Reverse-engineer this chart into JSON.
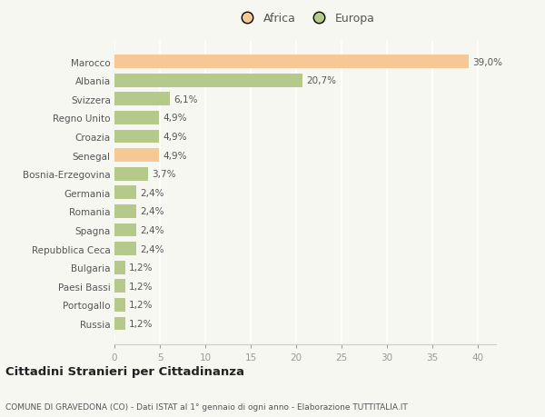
{
  "categories": [
    "Marocco",
    "Albania",
    "Svizzera",
    "Regno Unito",
    "Croazia",
    "Senegal",
    "Bosnia-Erzegovina",
    "Germania",
    "Romania",
    "Spagna",
    "Repubblica Ceca",
    "Bulgaria",
    "Paesi Bassi",
    "Portogallo",
    "Russia"
  ],
  "values": [
    39.0,
    20.7,
    6.1,
    4.9,
    4.9,
    4.9,
    3.7,
    2.4,
    2.4,
    2.4,
    2.4,
    1.2,
    1.2,
    1.2,
    1.2
  ],
  "labels": [
    "39,0%",
    "20,7%",
    "6,1%",
    "4,9%",
    "4,9%",
    "4,9%",
    "3,7%",
    "2,4%",
    "2,4%",
    "2,4%",
    "2,4%",
    "1,2%",
    "1,2%",
    "1,2%",
    "1,2%"
  ],
  "colors": [
    "#f5c896",
    "#b5c98a",
    "#b5c98a",
    "#b5c98a",
    "#b5c98a",
    "#f5c896",
    "#b5c98a",
    "#b5c98a",
    "#b5c98a",
    "#b5c98a",
    "#b5c98a",
    "#b5c98a",
    "#b5c98a",
    "#b5c98a",
    "#b5c98a"
  ],
  "africa_color": "#f5c896",
  "europa_color": "#b5c98a",
  "background_color": "#f7f7f2",
  "title1": "Cittadini Stranieri per Cittadinanza",
  "title2": "COMUNE DI GRAVEDONA (CO) - Dati ISTAT al 1° gennaio di ogni anno - Elaborazione TUTTITALIA.IT",
  "xlim": [
    0,
    42
  ],
  "xticks": [
    0,
    5,
    10,
    15,
    20,
    25,
    30,
    35,
    40
  ],
  "bar_height": 0.72,
  "label_fontsize": 7.5,
  "tick_fontsize": 7.5,
  "legend_fontsize": 9,
  "title1_fontsize": 9.5,
  "title2_fontsize": 6.5
}
